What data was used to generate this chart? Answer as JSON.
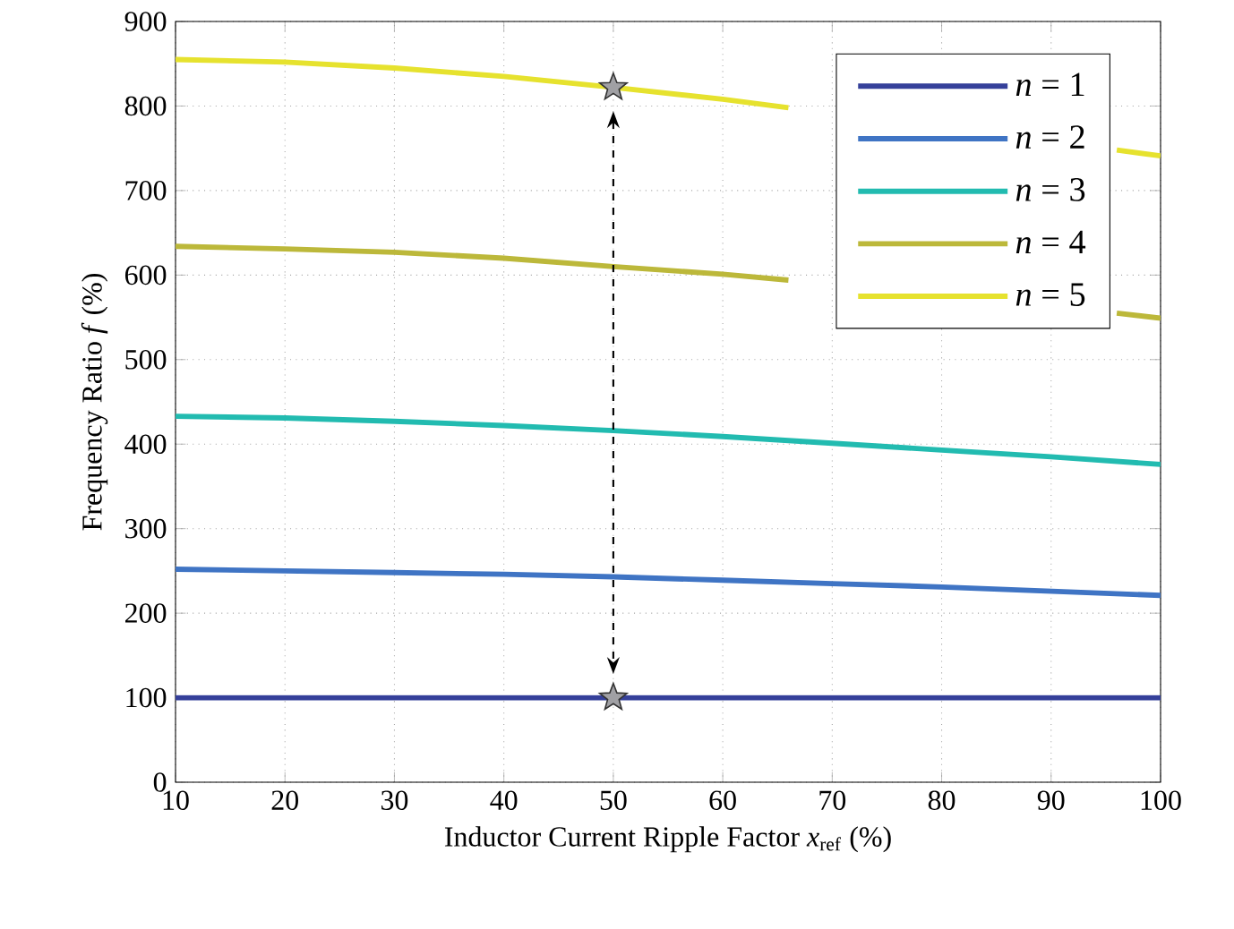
{
  "chart_data": {
    "type": "line",
    "xlabel": "Inductor Current Ripple Factor *x*$_{ref}$ (%)",
    "ylabel": "Frequency Ratio *f* (%)",
    "x": [
      10,
      20,
      30,
      40,
      50,
      60,
      70,
      80,
      90,
      100
    ],
    "series": [
      {
        "name": "*n* = 1",
        "color": "#35409a",
        "values": [
          100,
          100,
          100,
          100,
          100,
          100,
          100,
          100,
          100,
          100
        ]
      },
      {
        "name": "*n* = 2",
        "color": "#3f74c4",
        "values": [
          252,
          250,
          248,
          246,
          243,
          239,
          235,
          231,
          226,
          221
        ]
      },
      {
        "name": "*n* = 3",
        "color": "#22bbb0",
        "values": [
          433,
          431,
          427,
          422,
          416,
          409,
          401,
          393,
          385,
          376
        ]
      },
      {
        "name": "*n* = 4",
        "color": "#bcb83a",
        "x": [
          10,
          20,
          30,
          40,
          50,
          60,
          66,
          70,
          80,
          90,
          96,
          100
        ],
        "values": [
          634,
          631,
          627,
          620,
          610,
          601,
          594,
          null,
          null,
          null,
          555,
          549
        ]
      },
      {
        "name": "*n* = 5",
        "color": "#e6e22e",
        "x": [
          10,
          20,
          30,
          40,
          50,
          60,
          66,
          70,
          80,
          90,
          96,
          100
        ],
        "values": [
          855,
          852,
          845,
          835,
          822,
          808,
          798,
          null,
          null,
          null,
          748,
          741
        ]
      },
      {
        "type": "scatter",
        "marker": "star",
        "color": "#a0a0a4",
        "x": [
          50,
          50
        ],
        "values": [
          822,
          100
        ]
      }
    ],
    "xlim": [
      10,
      100
    ],
    "ylim": [
      0,
      900
    ],
    "xticks": [
      10,
      20,
      30,
      40,
      50,
      60,
      70,
      80,
      90,
      100
    ],
    "yticks": [
      0,
      100,
      200,
      300,
      400,
      500,
      600,
      700,
      800,
      900
    ],
    "grid": true,
    "legend": "top right",
    "line_style": "solid",
    "marker": "none"
  }
}
